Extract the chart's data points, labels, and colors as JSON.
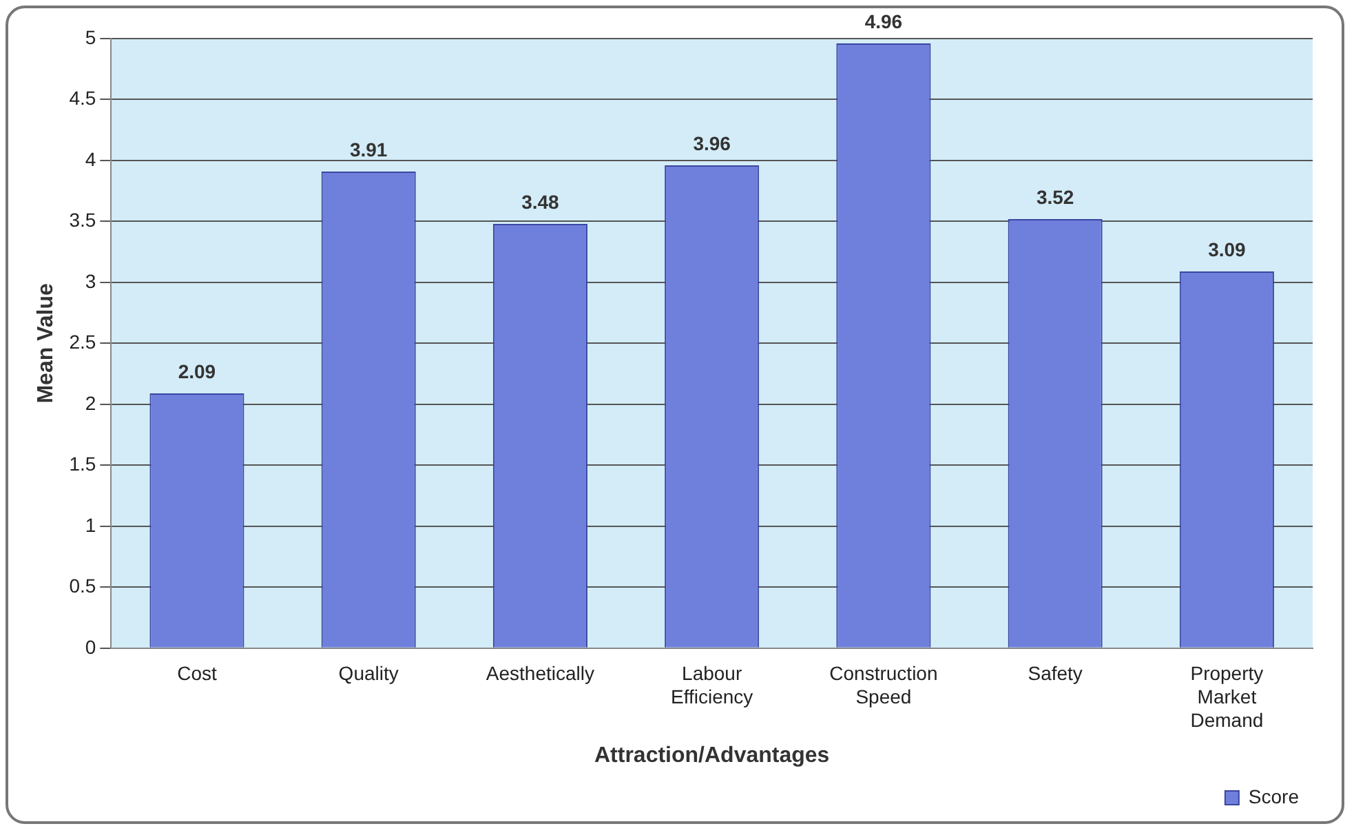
{
  "chart_data": {
    "type": "bar",
    "xlabel": "Attraction/Advantages",
    "ylabel": "Mean Value",
    "categories": [
      "Cost",
      "Quality",
      "Aesthetically",
      "Labour Efficiency",
      "Construction Speed",
      "Safety",
      "Property Market Demand"
    ],
    "series": [
      {
        "name": "Score",
        "color": "#6f80dc",
        "values": [
          2.09,
          3.91,
          3.48,
          3.96,
          4.96,
          3.52,
          3.09
        ]
      }
    ],
    "ylim": [
      0,
      5
    ],
    "yticks": [
      0,
      0.5,
      1,
      1.5,
      2,
      2.5,
      3,
      3.5,
      4,
      4.5,
      5
    ],
    "grid": "y",
    "legend": "bottom right",
    "data_labels": true
  }
}
